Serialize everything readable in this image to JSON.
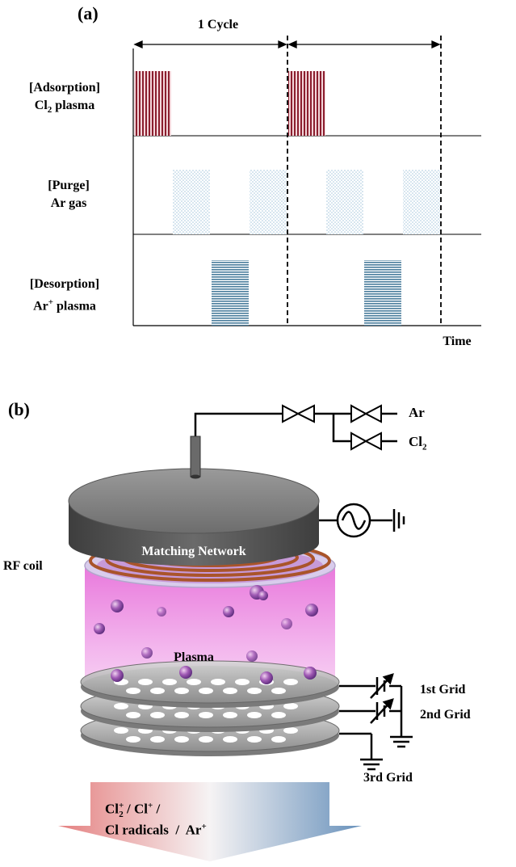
{
  "panel_a": {
    "label": "(a)",
    "cycle_label": "1 Cycle",
    "time_label": "Time",
    "rows": [
      {
        "line1": "[Adsorption]",
        "line2_prefix": "Cl",
        "line2_sub": "2",
        "line2_suffix": " plasma"
      },
      {
        "line1": "[Purge]",
        "line2": "Ar gas"
      },
      {
        "line1": "[Desorption]",
        "line2_prefix": "Ar",
        "line2_sup": "+",
        "line2_suffix": " plasma"
      }
    ],
    "colors": {
      "adsorption": "#8b1e2e",
      "purge": "#a8c8de",
      "desorption": "#4a7d9c"
    }
  },
  "panel_b": {
    "label": "(b)",
    "gas_ar": "Ar",
    "gas_cl2_prefix": "Cl",
    "gas_cl2_sub": "2",
    "matching_network": "Matching Network",
    "rf_coil": "RF coil",
    "plasma": "Plasma",
    "grid1": "1st Grid",
    "grid2": "2nd Grid",
    "grid3": "3rd Grid",
    "beam_line1_a": "Cl",
    "beam_line1_a_sub": "2",
    "beam_line1_a_sup": "+",
    "beam_line1_b": " / Cl",
    "beam_line1_b_sup": "+",
    "beam_line1_c": " /",
    "beam_line2_a": "Cl radicals  /  Ar",
    "beam_line2_sup": "+"
  }
}
